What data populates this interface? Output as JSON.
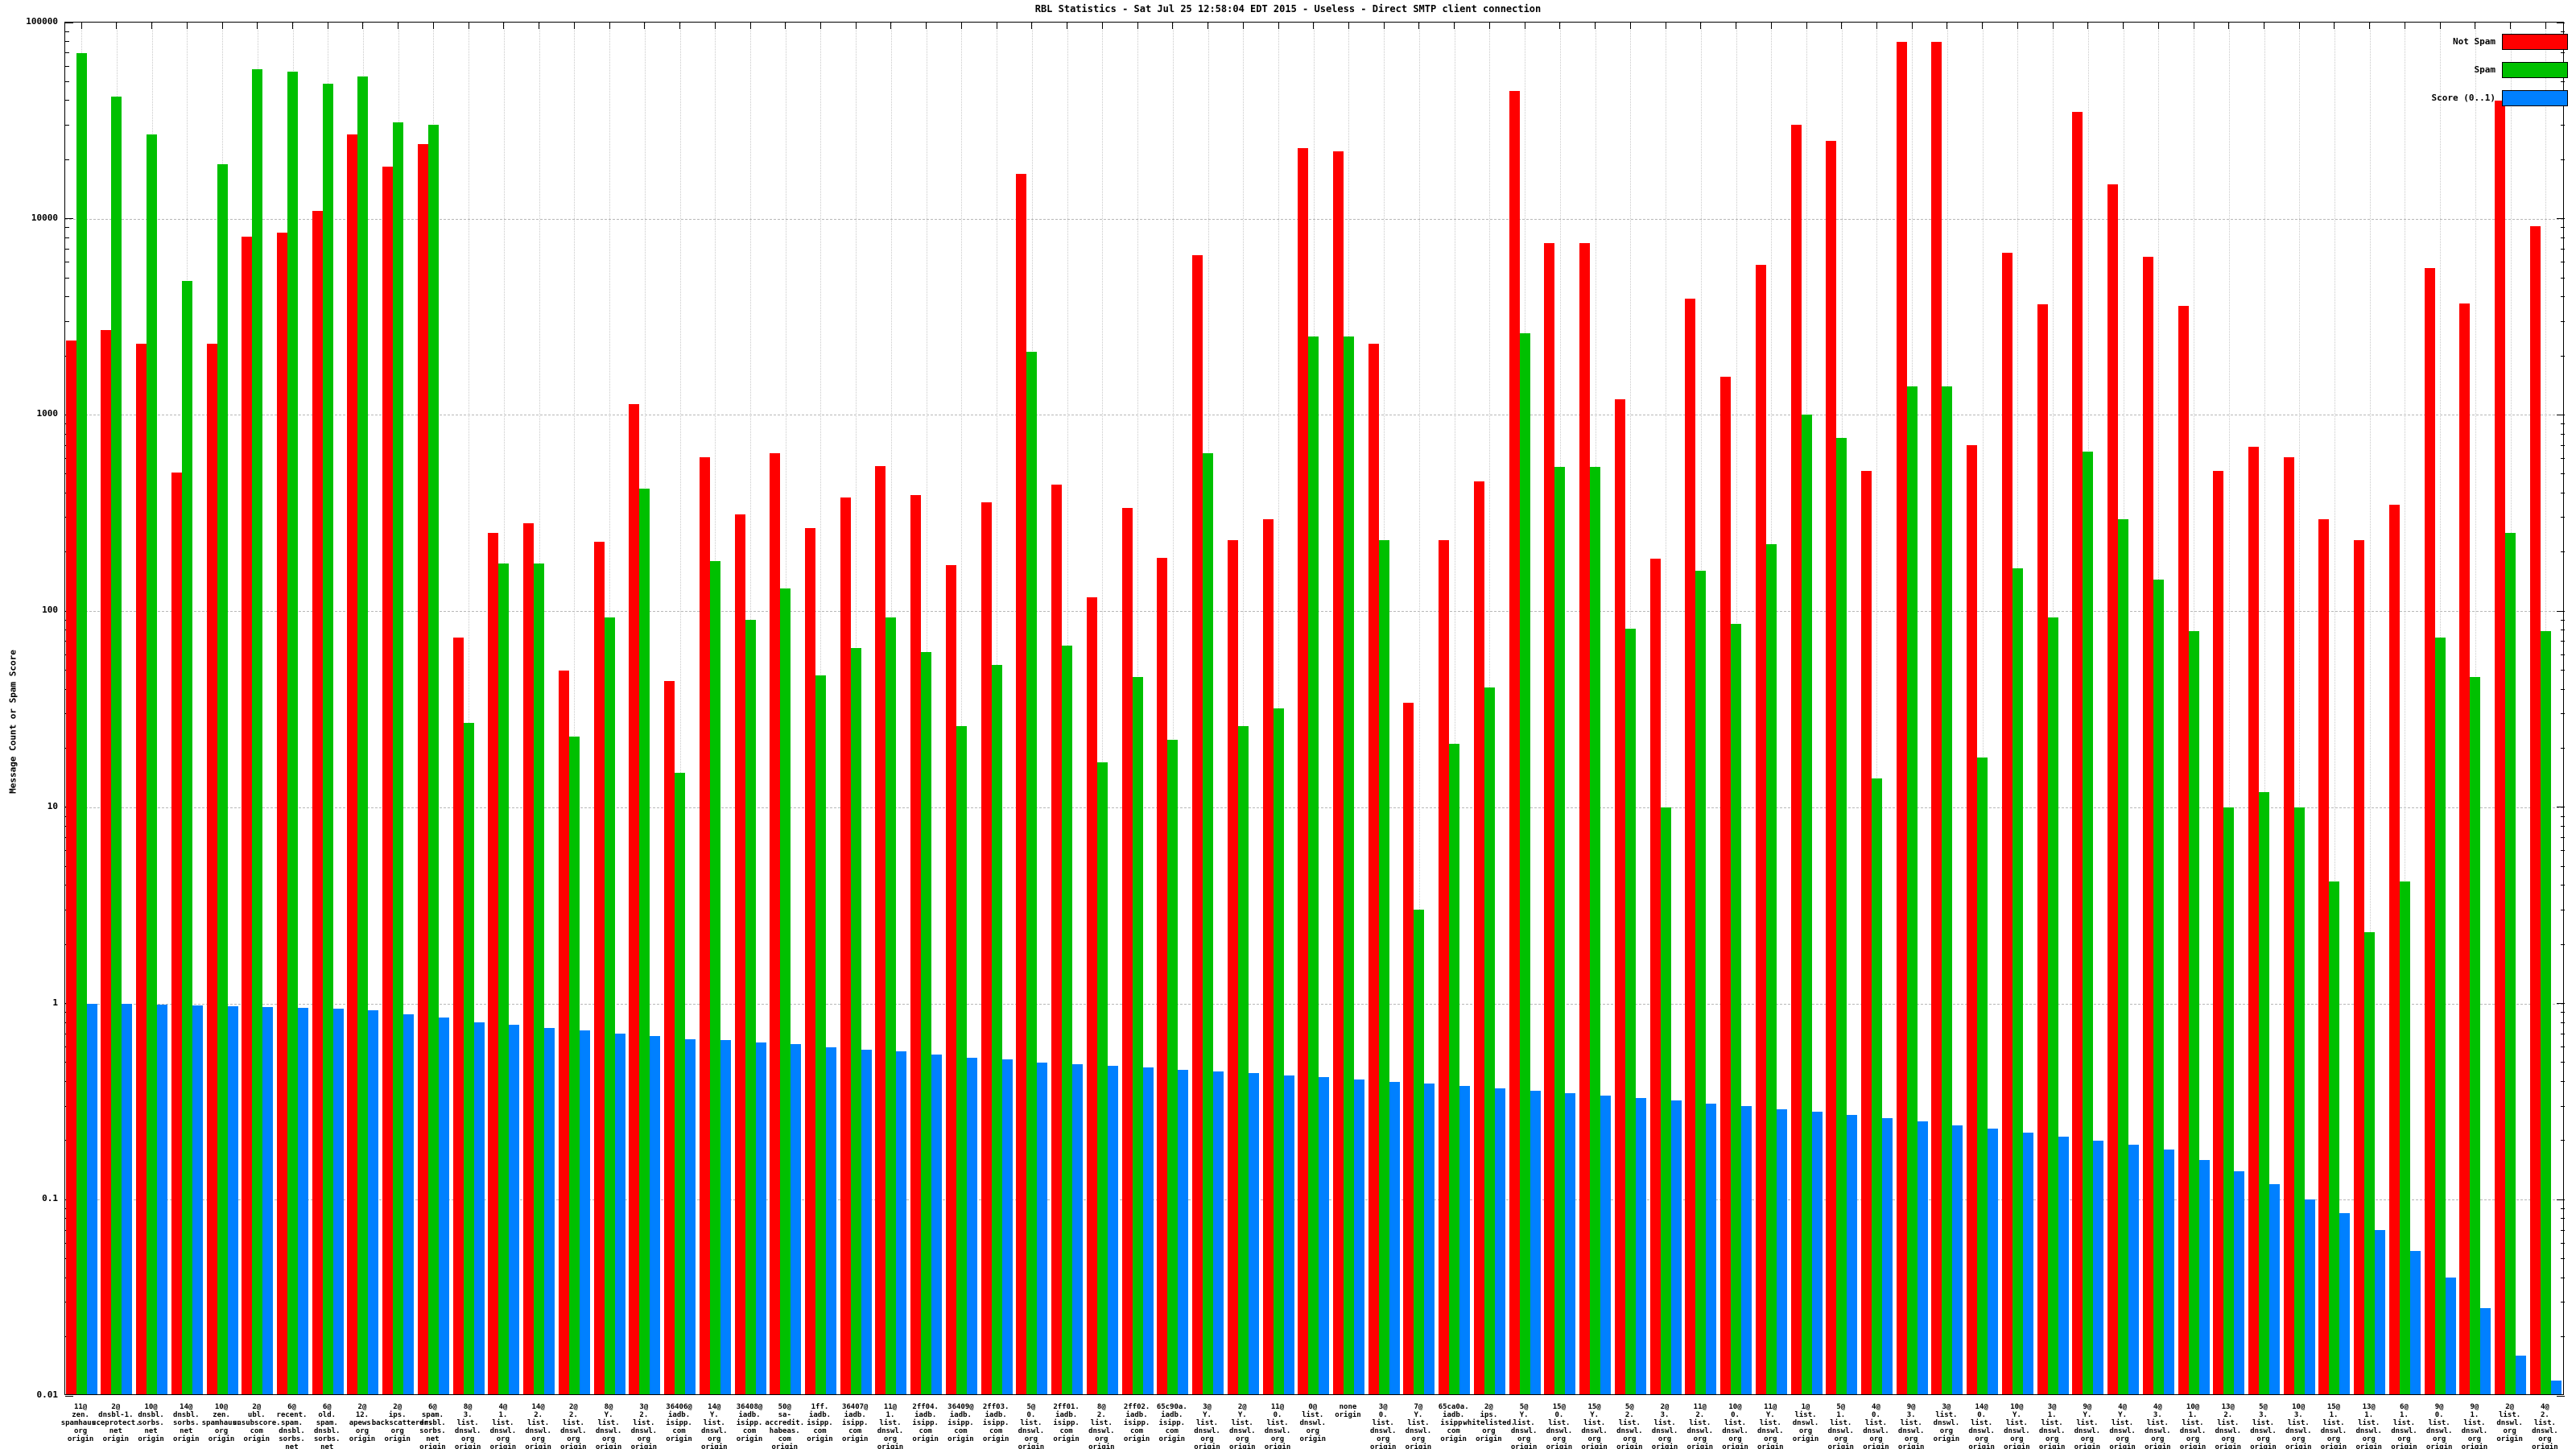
{
  "chart_data": {
    "type": "bar",
    "title": "RBL Statistics - Sat Jul 25 12:58:04 EDT 2015 - Useless - Direct SMTP client connection",
    "ylabel": "Message Count or Spam Score",
    "xlabel": "",
    "y_scale": "log",
    "ylim": [
      0.01,
      100000
    ],
    "y_ticks": [
      {
        "label": "100000",
        "value": 100000
      },
      {
        "label": "10000",
        "value": 10000
      },
      {
        "label": "1000",
        "value": 1000
      },
      {
        "label": "100",
        "value": 100
      },
      {
        "label": "10",
        "value": 10
      },
      {
        "label": "1",
        "value": 1
      },
      {
        "label": "0.1",
        "value": 0.1
      },
      {
        "label": "0.01",
        "value": 0.01
      }
    ],
    "grid": true,
    "legend_position": "top-right",
    "categories": [
      [
        "11@",
        "zen.",
        "spamhaus.",
        "org",
        "origin"
      ],
      [
        "2@",
        "dnsbl-1.",
        "uceprotect.",
        "net",
        "origin"
      ],
      [
        "10@",
        "dnsbl.",
        "sorbs.",
        "net",
        "origin"
      ],
      [
        "14@",
        "dnsbl.",
        "sorbs.",
        "net",
        "origin"
      ],
      [
        "10@",
        "zen.",
        "spamhaus.",
        "org",
        "origin"
      ],
      [
        "2@",
        "ubl.",
        "unsubscore.",
        "com",
        "origin"
      ],
      [
        "6@",
        "recent.",
        "spam.",
        "dnsbl.",
        "sorbs.",
        "net",
        "origin"
      ],
      [
        "6@",
        "old.",
        "spam.",
        "dnsbl.",
        "sorbs.",
        "net",
        "origin"
      ],
      [
        "2@",
        "12.",
        "apews.",
        "org",
        "origin"
      ],
      [
        "2@",
        "ips.",
        "backscatterer.",
        "org",
        "origin"
      ],
      [
        "6@",
        "spam.",
        "dnsbl.",
        "sorbs.",
        "net",
        "origin"
      ],
      [
        "8@",
        "3.",
        "list.",
        "dnswl.",
        "org",
        "origin"
      ],
      [
        "4@",
        "1.",
        "list.",
        "dnswl.",
        "org",
        "origin"
      ],
      [
        "14@",
        "2.",
        "list.",
        "dnswl.",
        "org",
        "origin"
      ],
      [
        "2@",
        "2.",
        "list.",
        "dnswl.",
        "org",
        "origin"
      ],
      [
        "8@",
        "Y.",
        "list.",
        "dnswl.",
        "org",
        "origin"
      ],
      [
        "3@",
        "2.",
        "list.",
        "dnswl.",
        "org",
        "origin"
      ],
      [
        "36406@",
        "iadb.",
        "isipp.",
        "com",
        "origin"
      ],
      [
        "14@",
        "Y.",
        "list.",
        "dnswl.",
        "org",
        "origin"
      ],
      [
        "36408@",
        "iadb.",
        "isipp.",
        "com",
        "origin"
      ],
      [
        "50@",
        "sa-accredit.",
        "habeas.",
        "com",
        "origin"
      ],
      [
        "1ff.",
        "iadb.",
        "isipp.",
        "com",
        "origin"
      ],
      [
        "36407@",
        "iadb.",
        "isipp.",
        "com",
        "origin"
      ],
      [
        "11@",
        "1.",
        "list.",
        "dnswl.",
        "org",
        "origin"
      ],
      [
        "2ff04.",
        "iadb.",
        "isipp.",
        "com",
        "origin"
      ],
      [
        "36409@",
        "iadb.",
        "isipp.",
        "com",
        "origin"
      ],
      [
        "2ff03.",
        "iadb.",
        "isipp.",
        "com",
        "origin"
      ],
      [
        "5@",
        "0.",
        "list.",
        "dnswl.",
        "org",
        "origin"
      ],
      [
        "2ff01.",
        "iadb.",
        "isipp.",
        "com",
        "origin"
      ],
      [
        "8@",
        "2.",
        "list.",
        "dnswl.",
        "org",
        "origin"
      ],
      [
        "2ff02.",
        "iadb.",
        "isipp.",
        "com",
        "origin"
      ],
      [
        "65c90a.",
        "iadb.",
        "isipp.",
        "com",
        "origin"
      ],
      [
        "3@",
        "Y.",
        "list.",
        "dnswl.",
        "org",
        "origin"
      ],
      [
        "2@",
        "Y.",
        "list.",
        "dnswl.",
        "org",
        "origin"
      ],
      [
        "11@",
        "0.",
        "list.",
        "dnswl.",
        "org",
        "origin"
      ],
      [
        "0@",
        "list.",
        "dnswl.",
        "org",
        "origin"
      ],
      [
        "none",
        "origin"
      ],
      [
        "3@",
        "0.",
        "list.",
        "dnswl.",
        "org",
        "origin"
      ],
      [
        "7@",
        "Y.",
        "list.",
        "dnswl.",
        "org",
        "origin"
      ],
      [
        "65ca0a.",
        "iadb.",
        "isipp.",
        "com",
        "origin"
      ],
      [
        "2@",
        "ips.",
        "whitelisted.",
        "org",
        "origin"
      ],
      [
        "5@",
        "Y.",
        "list.",
        "dnswl.",
        "org",
        "origin"
      ],
      [
        "15@",
        "0.",
        "list.",
        "dnswl.",
        "org",
        "origin"
      ],
      [
        "15@",
        "Y.",
        "list.",
        "dnswl.",
        "org",
        "origin"
      ],
      [
        "5@",
        "2.",
        "list.",
        "dnswl.",
        "org",
        "origin"
      ],
      [
        "2@",
        "3.",
        "list.",
        "dnswl.",
        "org",
        "origin"
      ],
      [
        "11@",
        "2.",
        "list.",
        "dnswl.",
        "org",
        "origin"
      ],
      [
        "10@",
        "0.",
        "list.",
        "dnswl.",
        "org",
        "origin"
      ],
      [
        "11@",
        "Y.",
        "list.",
        "dnswl.",
        "org",
        "origin"
      ],
      [
        "1@",
        "list.",
        "dnswl.",
        "org",
        "origin"
      ],
      [
        "5@",
        "1.",
        "list.",
        "dnswl.",
        "org",
        "origin"
      ],
      [
        "4@",
        "0.",
        "list.",
        "dnswl.",
        "org",
        "origin"
      ],
      [
        "9@",
        "3.",
        "list.",
        "dnswl.",
        "org",
        "origin"
      ],
      [
        "3@",
        "list.",
        "dnswl.",
        "org",
        "origin"
      ],
      [
        "14@",
        "0.",
        "list.",
        "dnswl.",
        "org",
        "origin"
      ],
      [
        "10@",
        "Y.",
        "list.",
        "dnswl.",
        "org",
        "origin"
      ],
      [
        "3@",
        "1.",
        "list.",
        "dnswl.",
        "org",
        "origin"
      ],
      [
        "9@",
        "Y.",
        "list.",
        "dnswl.",
        "org",
        "origin"
      ],
      [
        "4@",
        "Y.",
        "list.",
        "dnswl.",
        "org",
        "origin"
      ],
      [
        "4@",
        "3.",
        "list.",
        "dnswl.",
        "org",
        "origin"
      ],
      [
        "10@",
        "1.",
        "list.",
        "dnswl.",
        "org",
        "origin"
      ],
      [
        "13@",
        "2.",
        "list.",
        "dnswl.",
        "org",
        "origin"
      ],
      [
        "5@",
        "3.",
        "list.",
        "dnswl.",
        "org",
        "origin"
      ],
      [
        "10@",
        "3.",
        "list.",
        "dnswl.",
        "org",
        "origin"
      ],
      [
        "15@",
        "1.",
        "list.",
        "dnswl.",
        "org",
        "origin"
      ],
      [
        "13@",
        "1.",
        "list.",
        "dnswl.",
        "org",
        "origin"
      ],
      [
        "6@",
        "1.",
        "list.",
        "dnswl.",
        "org",
        "origin"
      ],
      [
        "9@",
        "0.",
        "list.",
        "dnswl.",
        "org",
        "origin"
      ],
      [
        "9@",
        "1.",
        "list.",
        "dnswl.",
        "org",
        "origin"
      ],
      [
        "2@",
        "list.",
        "dnswl.",
        "org",
        "origin"
      ],
      [
        "4@",
        "2.",
        "list.",
        "dnswl.",
        "org",
        "origin"
      ]
    ],
    "series": [
      {
        "name": "Not Spam",
        "color": "#ff0000",
        "values": [
          2400,
          2700,
          2300,
          510,
          2300,
          8100,
          8500,
          11000,
          27000,
          18500,
          24000,
          73,
          250,
          280,
          50,
          225,
          1140,
          44,
          610,
          310,
          640,
          265,
          380,
          550,
          390,
          172,
          358,
          17000,
          440,
          118,
          335,
          187,
          6500,
          230,
          295,
          23000,
          22000,
          2300,
          34,
          230,
          460,
          45000,
          7500,
          7500,
          1200,
          185,
          3900,
          1570,
          5800,
          30000,
          25000,
          520,
          80000,
          80000,
          700,
          6700,
          3650,
          35000,
          15000,
          6400,
          3600,
          520,
          690,
          610,
          295,
          230,
          350,
          5600,
          3700,
          40000,
          9200
        ]
      },
      {
        "name": "Spam",
        "color": "#00c000",
        "values": [
          70000,
          42000,
          27000,
          4800,
          19000,
          58000,
          56000,
          49000,
          53000,
          31000,
          30000,
          27,
          175,
          175,
          23,
          93,
          420,
          15,
          180,
          90,
          130,
          47,
          65,
          93,
          62,
          26,
          53,
          2100,
          67,
          17,
          46,
          22,
          640,
          26,
          32,
          2500,
          2500,
          230,
          3,
          21,
          41,
          2600,
          545,
          545,
          81,
          10,
          160,
          86,
          220,
          1000,
          760,
          14,
          1400,
          1400,
          18,
          165,
          93,
          650,
          295,
          145,
          79,
          10,
          12,
          10,
          4.2,
          2.3,
          4.2,
          73,
          46,
          250,
          79
        ]
      },
      {
        "name": "Score (0..1)",
        "color": "#0080ff",
        "values": [
          1.0,
          1.0,
          0.99,
          0.98,
          0.97,
          0.96,
          0.95,
          0.94,
          0.92,
          0.88,
          0.85,
          0.8,
          0.78,
          0.75,
          0.73,
          0.7,
          0.68,
          0.66,
          0.65,
          0.63,
          0.62,
          0.6,
          0.58,
          0.57,
          0.55,
          0.53,
          0.52,
          0.5,
          0.49,
          0.48,
          0.47,
          0.46,
          0.45,
          0.44,
          0.43,
          0.42,
          0.41,
          0.4,
          0.39,
          0.38,
          0.37,
          0.36,
          0.35,
          0.34,
          0.33,
          0.32,
          0.31,
          0.3,
          0.29,
          0.28,
          0.27,
          0.26,
          0.25,
          0.24,
          0.23,
          0.22,
          0.21,
          0.2,
          0.19,
          0.18,
          0.16,
          0.14,
          0.12,
          0.1,
          0.085,
          0.07,
          0.055,
          0.04,
          0.028,
          0.016,
          0.012
        ]
      }
    ]
  }
}
